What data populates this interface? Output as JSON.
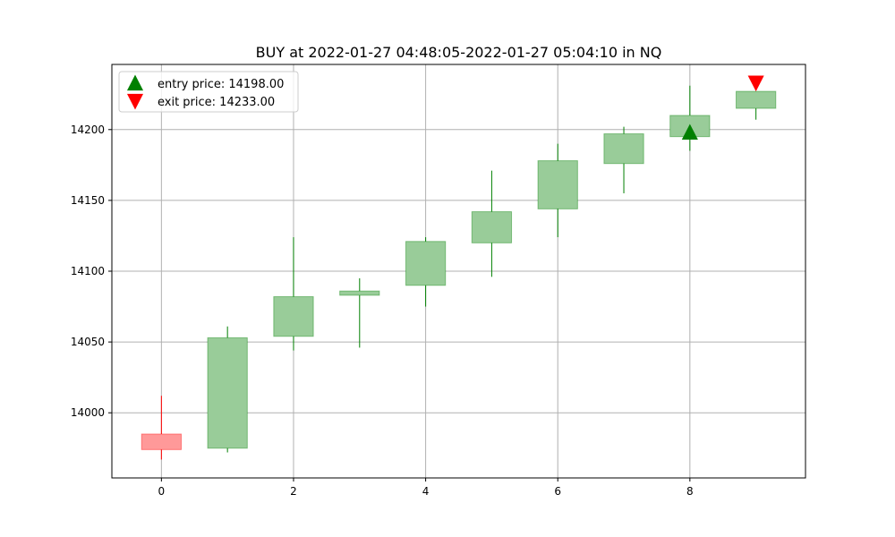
{
  "chart_data": {
    "type": "candlestick",
    "title": "BUY at 2022-01-27 04:48:05-2022-01-27 05:04:10 in NQ",
    "xlabel": "",
    "ylabel": "",
    "xlim": [
      -0.75,
      9.75
    ],
    "ylim": [
      13954,
      14246
    ],
    "x_ticks": [
      0,
      2,
      4,
      6,
      8
    ],
    "y_ticks": [
      14000,
      14050,
      14100,
      14150,
      14200
    ],
    "grid": true,
    "legend_position": "top-left",
    "colors": {
      "up": "#008000",
      "down": "#ff0000",
      "up_body": "#99cc99",
      "down_body": "#ff9999",
      "grid": "#b0b0b0"
    },
    "candles": [
      {
        "x": 0,
        "open": 13985,
        "high": 14012,
        "low": 13967,
        "close": 13974
      },
      {
        "x": 1,
        "open": 13975,
        "high": 14061,
        "low": 13972,
        "close": 14053
      },
      {
        "x": 2,
        "open": 14054,
        "high": 14124,
        "low": 14044,
        "close": 14082
      },
      {
        "x": 3,
        "open": 14083,
        "high": 14095,
        "low": 14046,
        "close": 14086
      },
      {
        "x": 4,
        "open": 14090,
        "high": 14124,
        "low": 14075,
        "close": 14121
      },
      {
        "x": 5,
        "open": 14120,
        "high": 14171,
        "low": 14096,
        "close": 14142
      },
      {
        "x": 6,
        "open": 14144,
        "high": 14190,
        "low": 14124,
        "close": 14178
      },
      {
        "x": 7,
        "open": 14176,
        "high": 14202,
        "low": 14155,
        "close": 14197
      },
      {
        "x": 8,
        "open": 14195,
        "high": 14231,
        "low": 14185,
        "close": 14210
      },
      {
        "x": 9,
        "open": 14215,
        "high": 14227,
        "low": 14207,
        "close": 14227
      }
    ],
    "markers": [
      {
        "label": "entry price: 14198.00",
        "x": 8,
        "y": 14198,
        "shape": "triangle-up",
        "color": "#008000"
      },
      {
        "label": "exit price: 14233.00",
        "x": 9,
        "y": 14233,
        "shape": "triangle-down",
        "color": "#ff0000"
      }
    ]
  }
}
